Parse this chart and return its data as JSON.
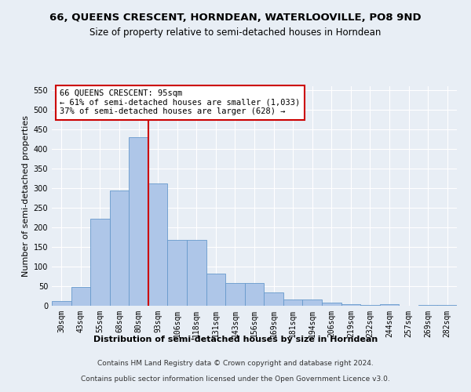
{
  "title_line1": "66, QUEENS CRESCENT, HORNDEAN, WATERLOOVILLE, PO8 9ND",
  "title_line2": "Size of property relative to semi-detached houses in Horndean",
  "xlabel": "Distribution of semi-detached houses by size in Horndean",
  "ylabel": "Number of semi-detached properties",
  "categories": [
    "30sqm",
    "43sqm",
    "55sqm",
    "68sqm",
    "80sqm",
    "93sqm",
    "106sqm",
    "118sqm",
    "131sqm",
    "143sqm",
    "156sqm",
    "169sqm",
    "181sqm",
    "194sqm",
    "206sqm",
    "219sqm",
    "232sqm",
    "244sqm",
    "257sqm",
    "269sqm",
    "282sqm"
  ],
  "values": [
    12,
    49,
    222,
    295,
    430,
    313,
    168,
    168,
    83,
    58,
    58,
    35,
    17,
    17,
    8,
    5,
    2,
    4,
    1,
    2,
    3
  ],
  "bar_color": "#aec6e8",
  "bar_edgecolor": "#6699cc",
  "red_line_x": 4.9,
  "annotation_text": "66 QUEENS CRESCENT: 95sqm\n← 61% of semi-detached houses are smaller (1,033)\n37% of semi-detached houses are larger (628) →",
  "annotation_box_color": "#ffffff",
  "annotation_box_edgecolor": "#cc0000",
  "ylim": [
    0,
    560
  ],
  "yticks": [
    0,
    50,
    100,
    150,
    200,
    250,
    300,
    350,
    400,
    450,
    500,
    550
  ],
  "footer_line1": "Contains HM Land Registry data © Crown copyright and database right 2024.",
  "footer_line2": "Contains public sector information licensed under the Open Government Licence v3.0.",
  "background_color": "#e8eef5",
  "plot_background_color": "#e8eef5",
  "grid_color": "#ffffff",
  "title_fontsize": 9.5,
  "subtitle_fontsize": 8.5,
  "tick_fontsize": 7,
  "label_fontsize": 8,
  "footer_fontsize": 6.5
}
